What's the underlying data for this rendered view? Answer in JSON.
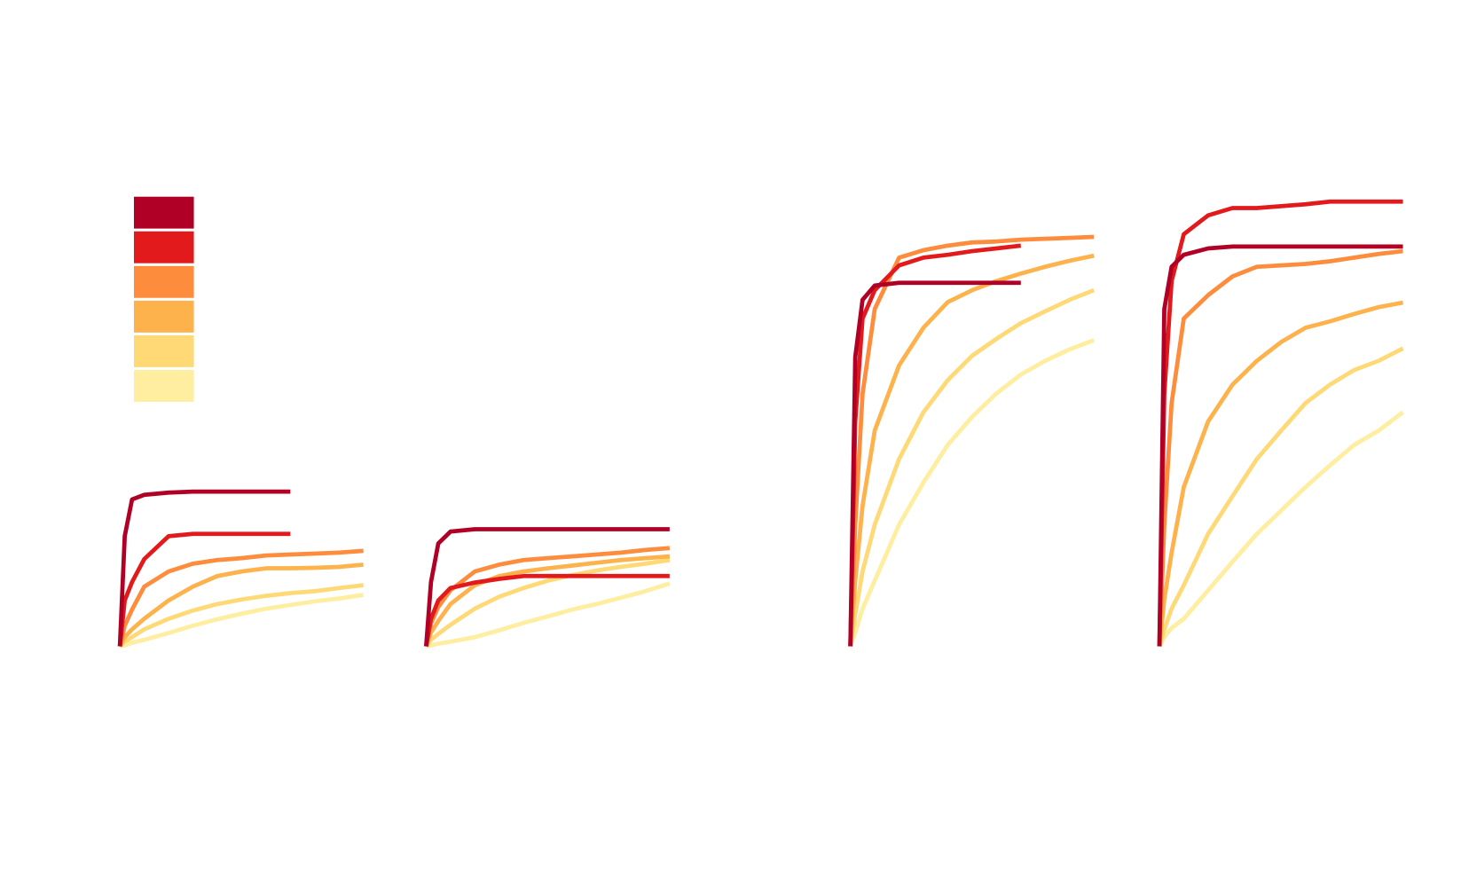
{
  "chart_data": [
    {
      "type": "line",
      "xlim": [
        0,
        100
      ],
      "ylim": [
        0,
        100
      ],
      "x": [
        0,
        2,
        5,
        10,
        20,
        30,
        40,
        50,
        60,
        70,
        80,
        90,
        100
      ],
      "series": [
        {
          "color": "#b10026",
          "values": [
            0,
            24,
            32,
            33,
            33.5,
            33.7,
            33.7,
            33.7,
            33.7,
            33.7,
            null,
            null,
            null
          ]
        },
        {
          "color": "#e31a1c",
          "values": [
            0,
            10,
            14,
            19,
            24,
            24.5,
            24.5,
            24.5,
            24.5,
            24.5,
            null,
            null,
            null
          ]
        },
        {
          "color": "#fd8d3c",
          "values": [
            0,
            4.5,
            8,
            13,
            16.3,
            18,
            18.8,
            19.2,
            19.8,
            20,
            20.2,
            20.4,
            20.8
          ]
        },
        {
          "color": "#feb24c",
          "values": [
            0,
            2,
            3.7,
            6,
            10,
            13,
            15.3,
            16.3,
            17,
            17,
            17.1,
            17.3,
            17.8
          ]
        },
        {
          "color": "#fed976",
          "values": [
            0,
            1,
            2,
            3.7,
            6,
            7.8,
            9.2,
            10.2,
            11,
            11.6,
            12,
            12.7,
            13.3
          ]
        },
        {
          "color": "#ffeda0",
          "values": [
            0,
            0.2,
            0.8,
            1.4,
            2.9,
            4.5,
            5.9,
            7.1,
            8.2,
            9,
            9.8,
            10.4,
            11.2
          ]
        }
      ]
    },
    {
      "type": "line",
      "xlim": [
        0,
        100
      ],
      "ylim": [
        0,
        100
      ],
      "x": [
        0,
        2,
        5,
        10,
        20,
        30,
        40,
        50,
        60,
        70,
        80,
        90,
        100
      ],
      "series": [
        {
          "color": "#b10026",
          "values": [
            0,
            14,
            22.4,
            25,
            25.5,
            25.5,
            25.5,
            25.5,
            25.5,
            25.5,
            25.5,
            25.5,
            25.5
          ]
        },
        {
          "color": "#e31a1c",
          "values": [
            0,
            6,
            10,
            12.7,
            13.9,
            14.7,
            15.3,
            15.3,
            15.3,
            15.3,
            15.3,
            15.3,
            15.3
          ]
        },
        {
          "color": "#fd8d3c",
          "values": [
            0,
            5,
            8.6,
            12.2,
            16.3,
            17.8,
            18.8,
            19.2,
            19.6,
            20,
            20.4,
            21,
            21.4
          ]
        },
        {
          "color": "#feb24c",
          "values": [
            0,
            3,
            5.5,
            9.2,
            13.3,
            15.3,
            16.3,
            17,
            17.6,
            18.2,
            18.8,
            19.2,
            19.6
          ]
        },
        {
          "color": "#fed976",
          "values": [
            0,
            1.4,
            2.7,
            4.7,
            8.2,
            10.8,
            12.7,
            14.3,
            15.5,
            16.5,
            17.3,
            18,
            18.8
          ]
        },
        {
          "color": "#ffeda0",
          "values": [
            0,
            0.2,
            0.6,
            1,
            2,
            3.5,
            5.1,
            6.5,
            8,
            9.2,
            10.6,
            12,
            13.7
          ]
        }
      ]
    },
    {
      "type": "line",
      "xlim": [
        0,
        100
      ],
      "ylim": [
        0,
        100
      ],
      "x": [
        0,
        2,
        5,
        10,
        20,
        30,
        40,
        50,
        60,
        70,
        80,
        90,
        100
      ],
      "series": [
        {
          "color": "#b10026",
          "values": [
            0,
            63,
            75.5,
            78.6,
            79.2,
            79.2,
            79.2,
            79.2,
            79.2,
            79.2,
            null,
            null,
            null
          ]
        },
        {
          "color": "#e31a1c",
          "values": [
            0,
            49,
            71.4,
            77.6,
            83,
            84.7,
            85.3,
            86.1,
            86.7,
            87.3,
            null,
            null,
            null
          ]
        },
        {
          "color": "#fd8d3c",
          "values": [
            0,
            26.5,
            55,
            73.5,
            84.7,
            86.3,
            87.3,
            88,
            88.2,
            88.6,
            88.8,
            89,
            89.2
          ]
        },
        {
          "color": "#feb24c",
          "values": [
            0,
            14.3,
            30.6,
            47,
            61.2,
            69.4,
            75,
            77.6,
            79.6,
            81.2,
            82.7,
            84,
            85.1
          ]
        },
        {
          "color": "#fed976",
          "values": [
            0,
            7,
            16.3,
            26.5,
            40.8,
            51,
            58,
            63.3,
            67,
            70.4,
            73,
            75.5,
            77.6
          ]
        },
        {
          "color": "#ffeda0",
          "values": [
            0,
            3,
            8.2,
            14.3,
            26.5,
            35.7,
            43.9,
            50,
            55.1,
            59.2,
            62.2,
            64.7,
            66.7
          ]
        }
      ]
    },
    {
      "type": "line",
      "xlim": [
        0,
        100
      ],
      "ylim": [
        0,
        100
      ],
      "x": [
        0,
        2,
        5,
        10,
        20,
        30,
        40,
        50,
        60,
        70,
        80,
        90,
        100
      ],
      "series": [
        {
          "color": "#b10026",
          "values": [
            0,
            73.5,
            82.7,
            85.3,
            86.7,
            87.1,
            87.1,
            87.1,
            87.1,
            87.1,
            87.1,
            87.1,
            87.1
          ]
        },
        {
          "color": "#e31a1c",
          "values": [
            0,
            55,
            79.6,
            89.8,
            93.9,
            95.5,
            95.5,
            95.9,
            96.3,
            96.9,
            96.9,
            96.9,
            96.9
          ]
        },
        {
          "color": "#fd8d3c",
          "values": [
            0,
            26.5,
            53,
            71.4,
            76.5,
            80.6,
            82.7,
            83,
            83.3,
            83.9,
            84.7,
            85.5,
            86.1
          ]
        },
        {
          "color": "#feb24c",
          "values": [
            0,
            10.2,
            20.4,
            34.7,
            49,
            57,
            62.2,
            66.3,
            69.4,
            70.8,
            72.4,
            73.9,
            74.9
          ]
        },
        {
          "color": "#fed976",
          "values": [
            0,
            3.7,
            8.2,
            13.3,
            24.5,
            32.7,
            40.8,
            47,
            53,
            57,
            60.2,
            62.2,
            64.9
          ]
        },
        {
          "color": "#ffeda0",
          "values": [
            0,
            2,
            4,
            6,
            12.2,
            18.4,
            24.5,
            29.6,
            34.7,
            39.4,
            43.9,
            47,
            51
          ]
        }
      ]
    }
  ]
}
